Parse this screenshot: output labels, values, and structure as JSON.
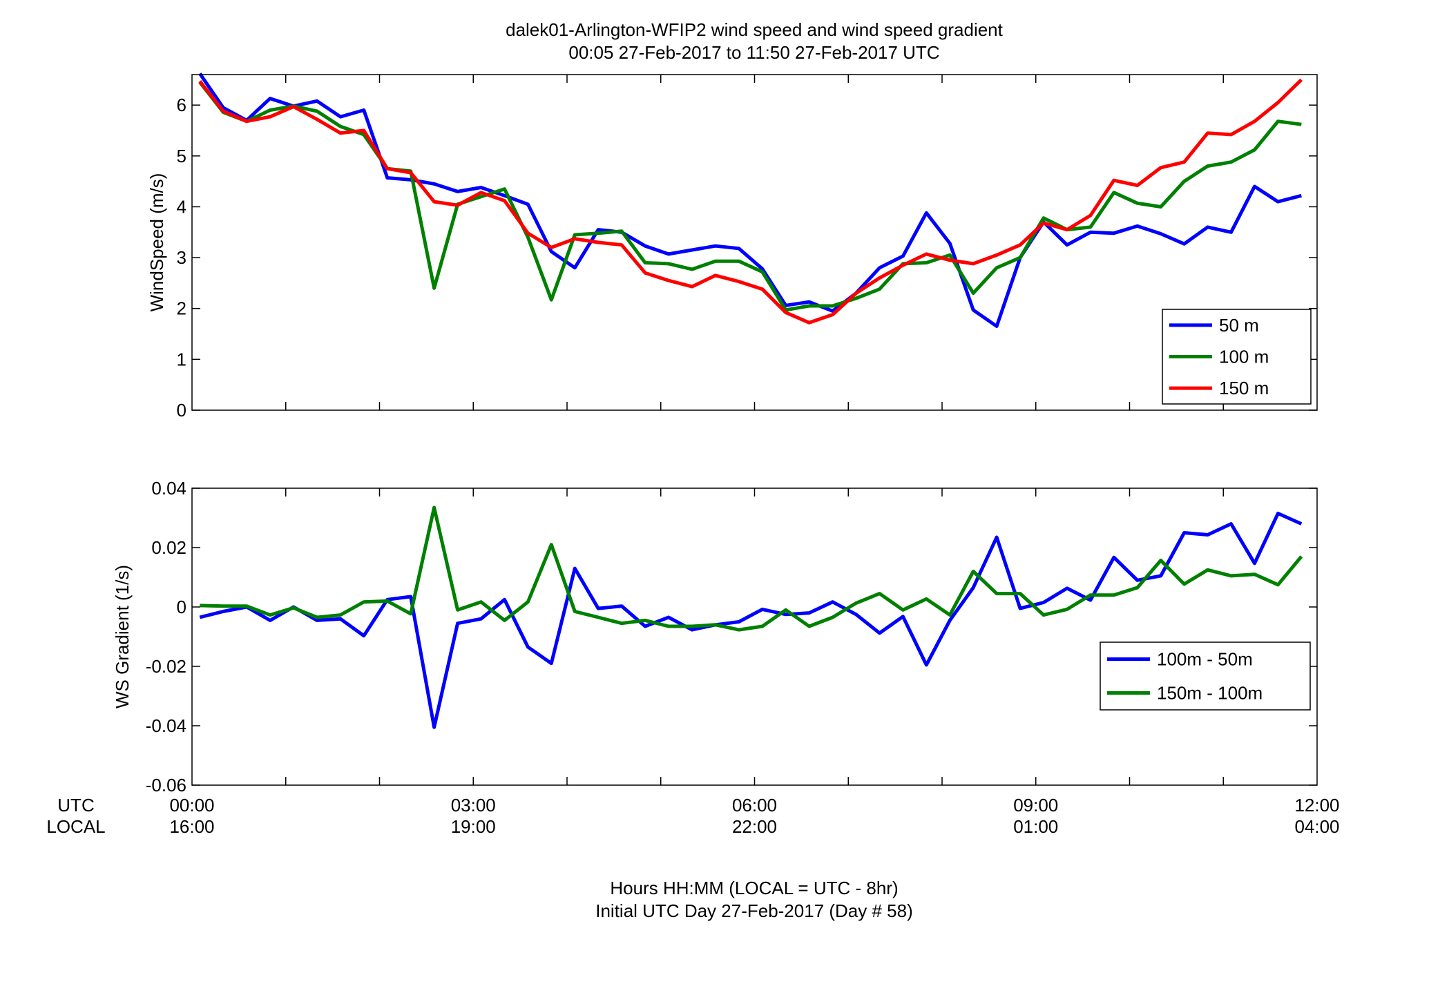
{
  "figure": {
    "title_line1": "dalek01-Arlington-WFIP2  wind speed and wind speed gradient",
    "title_line2": "00:05 27-Feb-2017 to 11:50 27-Feb-2017  UTC",
    "row_label_utc": "UTC",
    "row_label_local": "LOCAL",
    "xlabel_line1": "Hours HH:MM  (LOCAL = UTC - 8hr)",
    "xlabel_line2": "Initial UTC Day 27-Feb-2017 (Day # 58)"
  },
  "colors": {
    "blue": "#0000ff",
    "green": "#008000",
    "red": "#ff0000",
    "axis": "#000000"
  },
  "chart_data": [
    {
      "type": "line",
      "title": "",
      "xlabel": "",
      "ylabel": "WindSpeed (m/s)",
      "xlim": [
        0,
        12
      ],
      "ylim": [
        0,
        6.6
      ],
      "yticks": [
        0,
        1,
        2,
        3,
        4,
        5,
        6
      ],
      "ytick_labels": [
        "0",
        "1",
        "2",
        "3",
        "4",
        "5",
        "6"
      ],
      "grid": false,
      "legend_position": "bottom-right",
      "x": [
        0.083,
        0.333,
        0.583,
        0.833,
        1.083,
        1.333,
        1.583,
        1.833,
        2.083,
        2.333,
        2.583,
        2.833,
        3.083,
        3.333,
        3.583,
        3.833,
        4.083,
        4.333,
        4.583,
        4.833,
        5.083,
        5.333,
        5.583,
        5.833,
        6.083,
        6.333,
        6.583,
        6.833,
        7.083,
        7.333,
        7.583,
        7.833,
        8.083,
        8.333,
        8.583,
        8.833,
        9.083,
        9.333,
        9.583,
        9.833,
        10.083,
        10.333,
        10.583,
        10.833,
        11.083,
        11.333,
        11.583,
        11.833
      ],
      "series": [
        {
          "name": "50 m",
          "color": "#0000ff",
          "values": [
            6.62,
            5.95,
            5.7,
            6.13,
            5.98,
            6.08,
            5.77,
            5.9,
            4.57,
            4.53,
            4.45,
            4.3,
            4.38,
            4.22,
            4.05,
            3.12,
            2.8,
            3.55,
            3.5,
            3.23,
            3.07,
            3.15,
            3.23,
            3.18,
            2.78,
            2.06,
            2.13,
            1.95,
            2.3,
            2.8,
            3.03,
            3.88,
            3.28,
            1.97,
            1.65,
            3.0,
            3.7,
            3.25,
            3.5,
            3.48,
            3.62,
            3.47,
            3.27,
            3.6,
            3.5,
            4.4,
            4.1,
            4.22
          ]
        },
        {
          "name": "100 m",
          "color": "#008000",
          "values": [
            6.45,
            5.86,
            5.68,
            5.9,
            5.98,
            5.88,
            5.58,
            5.42,
            4.75,
            4.7,
            2.4,
            4.05,
            4.2,
            4.35,
            3.4,
            2.17,
            3.45,
            3.48,
            3.52,
            2.9,
            2.88,
            2.77,
            2.93,
            2.93,
            2.72,
            1.97,
            2.05,
            2.05,
            2.2,
            2.38,
            2.88,
            2.9,
            3.05,
            2.3,
            2.8,
            3.0,
            3.78,
            3.55,
            3.6,
            4.28,
            4.07,
            4.0,
            4.5,
            4.8,
            4.88,
            5.12,
            5.68,
            5.62
          ]
        },
        {
          "name": "150 m",
          "color": "#ff0000",
          "values": [
            6.47,
            5.88,
            5.68,
            5.77,
            5.97,
            5.72,
            5.45,
            5.5,
            4.75,
            4.67,
            4.1,
            4.03,
            4.28,
            4.12,
            3.48,
            3.2,
            3.37,
            3.3,
            3.25,
            2.7,
            2.55,
            2.43,
            2.65,
            2.53,
            2.38,
            1.92,
            1.72,
            1.88,
            2.3,
            2.6,
            2.85,
            3.07,
            2.95,
            2.88,
            3.05,
            3.25,
            3.68,
            3.55,
            3.83,
            4.52,
            4.42,
            4.77,
            4.88,
            5.45,
            5.42,
            5.68,
            6.05,
            6.5
          ]
        }
      ]
    },
    {
      "type": "line",
      "title": "",
      "xlabel": "",
      "ylabel": "WS Gradient (1/s)",
      "xlim": [
        0,
        12
      ],
      "ylim": [
        -0.06,
        0.04
      ],
      "yticks": [
        -0.06,
        -0.04,
        -0.02,
        0,
        0.02,
        0.04
      ],
      "ytick_labels": [
        "-0.06",
        "-0.04",
        "-0.02",
        "0",
        "0.02",
        "0.04"
      ],
      "xticks": [
        0,
        3,
        6,
        9,
        12
      ],
      "xtick_labels_utc": [
        "00:00",
        "03:00",
        "06:00",
        "09:00",
        "12:00"
      ],
      "xtick_labels_local": [
        "16:00",
        "19:00",
        "22:00",
        "01:00",
        "04:00"
      ],
      "grid": false,
      "legend_position": "right",
      "x": [
        0.083,
        0.333,
        0.583,
        0.833,
        1.083,
        1.333,
        1.583,
        1.833,
        2.083,
        2.333,
        2.583,
        2.833,
        3.083,
        3.333,
        3.583,
        3.833,
        4.083,
        4.333,
        4.583,
        4.833,
        5.083,
        5.333,
        5.583,
        5.833,
        6.083,
        6.333,
        6.583,
        6.833,
        7.083,
        7.333,
        7.583,
        7.833,
        8.083,
        8.333,
        8.583,
        8.833,
        9.083,
        9.333,
        9.583,
        9.833,
        10.083,
        10.333,
        10.583,
        10.833,
        11.083,
        11.333,
        11.583,
        11.833
      ],
      "series": [
        {
          "name": "100m - 50m",
          "color": "#0000ff",
          "values": [
            -0.0035,
            -0.0015,
            0.0,
            -0.0045,
            0.0,
            -0.0045,
            -0.004,
            -0.0097,
            0.0025,
            0.0035,
            -0.0405,
            -0.0055,
            -0.004,
            0.0025,
            -0.0135,
            -0.019,
            0.013,
            -0.0005,
            0.0003,
            -0.0065,
            -0.0035,
            -0.0077,
            -0.006,
            -0.005,
            -0.0008,
            -0.0025,
            -0.002,
            0.0017,
            -0.0025,
            -0.0088,
            -0.0032,
            -0.0195,
            -0.0045,
            0.0065,
            0.0235,
            -0.0005,
            0.0015,
            0.0063,
            0.0023,
            0.0167,
            0.009,
            0.0105,
            0.025,
            0.0243,
            0.028,
            0.0147,
            0.0315,
            0.028
          ]
        },
        {
          "name": "150m - 100m",
          "color": "#008000",
          "values": [
            0.0005,
            0.0003,
            0.0003,
            -0.0027,
            -0.0003,
            -0.0035,
            -0.0027,
            0.0017,
            0.002,
            -0.0023,
            0.0335,
            -0.001,
            0.0017,
            -0.0045,
            0.0017,
            0.021,
            -0.0015,
            -0.0035,
            -0.0055,
            -0.0045,
            -0.0065,
            -0.0065,
            -0.006,
            -0.0077,
            -0.0065,
            -0.001,
            -0.0065,
            -0.0035,
            0.0013,
            0.0045,
            -0.001,
            0.0027,
            -0.0027,
            0.012,
            0.0045,
            0.0045,
            -0.0027,
            -0.0008,
            0.004,
            0.004,
            0.0065,
            0.0157,
            0.0077,
            0.0125,
            0.0105,
            0.011,
            0.0075,
            0.017
          ]
        }
      ]
    }
  ]
}
